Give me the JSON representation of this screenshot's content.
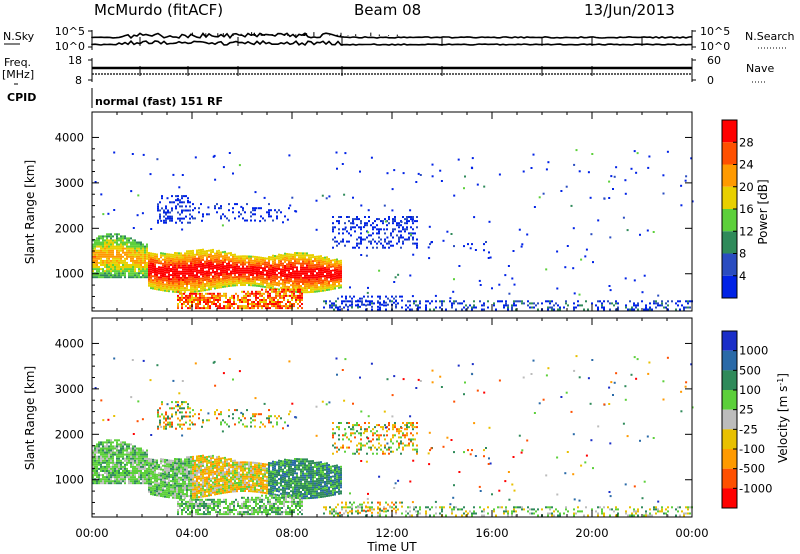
{
  "header": {
    "title": "McMurdo (fitACF)",
    "beam": "Beam 08",
    "date": "13/Jun/2013"
  },
  "summary_panels": {
    "nsky_label": "N.Sky",
    "nsearch_label": "N.Search",
    "nsky_ticks": [
      "10^5",
      "10^0"
    ],
    "freq_label": "Freq.",
    "freq_unit": "[MHz]",
    "freq_ticks": [
      "18",
      "8"
    ],
    "nave_label": "Nave",
    "nave_ticks": [
      "60",
      "0"
    ],
    "cpid_label": "CPID",
    "cpid_text": "normal (fast) 151 RF"
  },
  "colors": {
    "power_scale": [
      "#0022e6",
      "#2a4cc0",
      "#2f8a5a",
      "#5cd03a",
      "#e8d000",
      "#ff9a00",
      "#ff5000",
      "#ff0000"
    ],
    "velocity_scale": [
      "#1a2ec8",
      "#2a6aa8",
      "#2f8a5a",
      "#5cd03a",
      "#bcbcbc",
      "#e8c000",
      "#ff9a00",
      "#ff5000",
      "#ff0000"
    ]
  },
  "chart_data": [
    {
      "type": "heatmap",
      "name": "power",
      "xlabel": "Time UT",
      "ylabel": "Slant Range [km]",
      "xlim": [
        "00:00",
        "24:00"
      ],
      "ylim": [
        180,
        4560
      ],
      "x_ticks": [
        "00:00",
        "04:00",
        "08:00",
        "12:00",
        "16:00",
        "20:00",
        "00:00"
      ],
      "y_ticks": [
        1000,
        2000,
        3000,
        4000
      ],
      "colorbar": {
        "label": "Power [dB]",
        "ticks": [
          "28",
          "24",
          "20",
          "16",
          "12",
          "8",
          "4"
        ],
        "range": [
          0,
          32
        ]
      },
      "regions": [
        {
          "t": [
            0.0,
            2.1
          ],
          "r": [
            900,
            1850
          ],
          "level": "moderate (12-20 dB)"
        },
        {
          "t": [
            2.1,
            9.9
          ],
          "r": [
            700,
            1500
          ],
          "level": "strong (24-32 dB)"
        },
        {
          "t": [
            3.5,
            8.2
          ],
          "r": [
            200,
            650
          ],
          "level": "strong (20-32 dB)"
        },
        {
          "t": [
            2.5,
            8.0
          ],
          "r": [
            2100,
            2800
          ],
          "level": "weak (4-8 dB)"
        },
        {
          "t": [
            10.0,
            13.0
          ],
          "r": [
            1500,
            2200
          ],
          "level": "weak (4-8 dB)"
        },
        {
          "t": [
            9.0,
            24.0
          ],
          "r": [
            180,
            500
          ],
          "level": "weak, scattered"
        }
      ]
    },
    {
      "type": "heatmap",
      "name": "velocity",
      "xlabel": "Time UT",
      "ylabel": "Slant Range [km]",
      "xlim": [
        "00:00",
        "24:00"
      ],
      "ylim": [
        180,
        4560
      ],
      "x_ticks": [
        "00:00",
        "04:00",
        "08:00",
        "12:00",
        "16:00",
        "20:00",
        "00:00"
      ],
      "y_ticks": [
        1000,
        2000,
        3000,
        4000
      ],
      "colorbar": {
        "label": "Velocity [m s-1]",
        "label_main": "Velocity",
        "label_unit": "[m s",
        "label_sup": "-1",
        "label_close": "]",
        "ticks": [
          "1000",
          "500",
          "100",
          "25",
          "-25",
          "-100",
          "-500",
          "-1000"
        ]
      },
      "regions": [
        {
          "t": [
            0.0,
            4.0
          ],
          "r": [
            800,
            1800
          ],
          "v": "+100 to +500 m/s"
        },
        {
          "t": [
            4.0,
            7.0
          ],
          "r": [
            700,
            1500
          ],
          "v": "-100 to -500 m/s"
        },
        {
          "t": [
            7.0,
            9.9
          ],
          "r": [
            700,
            1500
          ],
          "v": "+500 to +1000 m/s"
        },
        {
          "t": [
            3.0,
            8.0
          ],
          "r": [
            250,
            600
          ],
          "v": "+100 to +500 m/s"
        },
        {
          "t": [
            9.0,
            24.0
          ],
          "r": [
            180,
            500
          ],
          "v": "scattered, mixed"
        }
      ]
    }
  ]
}
